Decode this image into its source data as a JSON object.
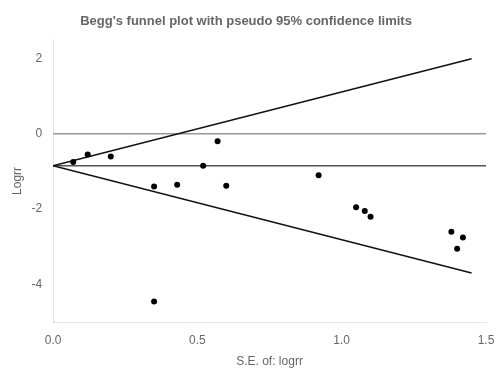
{
  "chart_data": {
    "type": "scatter",
    "title": "Begg's funnel plot with pseudo 95% confidence limits",
    "xlabel": "S.E. of: logrr",
    "ylabel": "Logrr",
    "xlim": [
      0,
      1.5
    ],
    "ylim": [
      -5.0,
      2.5
    ],
    "xticks": [
      {
        "value": 0,
        "label": "0.0"
      },
      {
        "value": 0.5,
        "label": "0.5"
      },
      {
        "value": 1.0,
        "label": "1.0"
      },
      {
        "value": 1.5,
        "label": "1.5"
      }
    ],
    "yticks": [
      2,
      0,
      -2,
      -4
    ],
    "grid": false,
    "series": [
      {
        "type": "line",
        "color": "#999999",
        "x": [
          0,
          1.5
        ],
        "values": [
          0,
          0
        ]
      },
      {
        "type": "line",
        "color": "#555555",
        "x": [
          0,
          1.5
        ],
        "values": [
          -0.85,
          -0.85
        ]
      },
      {
        "type": "line",
        "color": "#111111",
        "x": [
          0.0,
          1.45
        ],
        "values": [
          -0.85,
          1.992
        ]
      },
      {
        "type": "line",
        "color": "#111111",
        "x": [
          0.0,
          1.45
        ],
        "values": [
          -0.85,
          -3.692
        ]
      },
      {
        "type": "scatter",
        "color": "#000000",
        "x": [
          0.07,
          0.12,
          0.2,
          0.35,
          0.43,
          0.52,
          0.57,
          0.6,
          0.35,
          0.92,
          1.05,
          1.08,
          1.1,
          1.38,
          1.4,
          1.42
        ],
        "values": [
          -0.75,
          -0.55,
          -0.6,
          -1.4,
          -1.35,
          -0.85,
          -0.2,
          -1.38,
          -4.45,
          -1.1,
          -1.95,
          -2.05,
          -2.2,
          -2.6,
          -3.05,
          -2.75
        ]
      }
    ]
  }
}
